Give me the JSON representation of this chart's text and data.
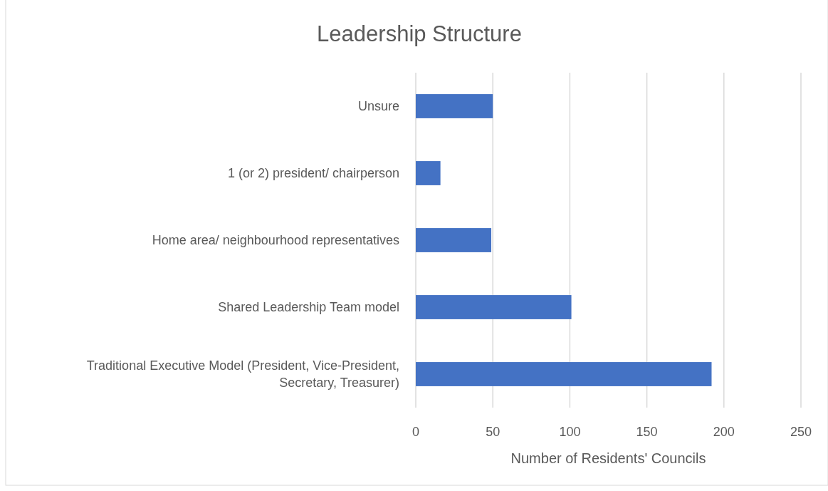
{
  "chart_data": {
    "type": "bar",
    "orientation": "horizontal",
    "title": "Leadership Structure",
    "xlabel": "Number of Residents' Councils",
    "categories": [
      "Unsure",
      "1 (or 2) president/ chairperson",
      "Home area/ neighbourhood representatives",
      "Shared Leadership Team model",
      "Traditional Executive Model (President, Vice-President, Secretary, Treasurer)"
    ],
    "values": [
      50,
      16,
      49,
      101,
      192
    ],
    "color": "#4472c4",
    "xlim": [
      0,
      250
    ],
    "xticks": [
      0,
      50,
      100,
      150,
      200,
      250
    ],
    "grid": "x"
  }
}
